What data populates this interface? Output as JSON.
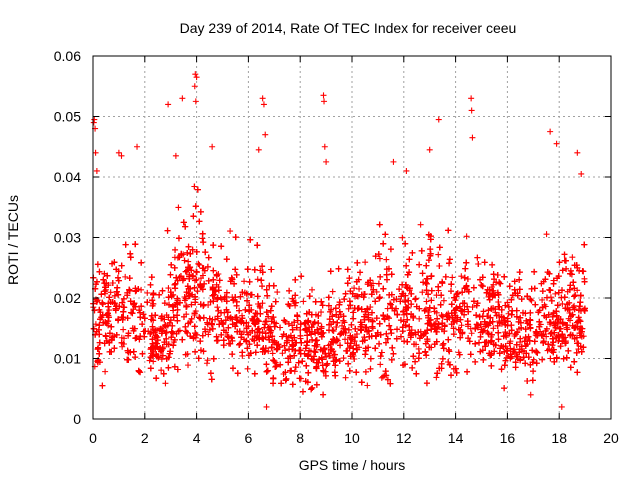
{
  "chart_data": {
    "type": "scatter",
    "title": "Day 239 of 2014, Rate Of TEC Index for receiver ceeu",
    "xlabel": "GPS time / hours",
    "ylabel": "ROTI / TECUs",
    "xlim": [
      0,
      20
    ],
    "ylim": [
      0,
      0.06
    ],
    "x_ticks": [
      "0",
      "2",
      "4",
      "6",
      "8",
      "10",
      "12",
      "14",
      "16",
      "18",
      "20"
    ],
    "y_ticks": [
      "0",
      "0.01",
      "0.02",
      "0.03",
      "0.04",
      "0.05",
      "0.06"
    ],
    "grid": true,
    "marker": "plus",
    "series": [
      {
        "name": "ROTI",
        "color": "#ff0000",
        "x_range": [
          0,
          19
        ],
        "density_per_hour": 320,
        "envelope_hours": [
          0,
          0.5,
          1,
          1.5,
          2,
          2.5,
          3,
          3.5,
          4,
          4.5,
          5,
          5.5,
          6,
          6.5,
          7,
          7.5,
          8,
          8.5,
          9,
          9.5,
          10,
          10.5,
          11,
          11.5,
          12,
          12.5,
          13,
          13.5,
          14,
          14.5,
          15,
          15.5,
          16,
          16.5,
          17,
          17.5,
          18,
          18.5,
          19
        ],
        "envelope_median": [
          0.016,
          0.016,
          0.017,
          0.016,
          0.014,
          0.013,
          0.017,
          0.02,
          0.021,
          0.018,
          0.017,
          0.017,
          0.016,
          0.017,
          0.013,
          0.013,
          0.013,
          0.012,
          0.013,
          0.014,
          0.015,
          0.016,
          0.017,
          0.019,
          0.018,
          0.017,
          0.018,
          0.017,
          0.018,
          0.019,
          0.017,
          0.016,
          0.014,
          0.015,
          0.014,
          0.016,
          0.017,
          0.016,
          0.017
        ],
        "envelope_spread": [
          0.007,
          0.007,
          0.008,
          0.007,
          0.006,
          0.006,
          0.008,
          0.009,
          0.01,
          0.008,
          0.007,
          0.007,
          0.007,
          0.008,
          0.006,
          0.006,
          0.006,
          0.006,
          0.006,
          0.007,
          0.007,
          0.007,
          0.008,
          0.009,
          0.008,
          0.008,
          0.008,
          0.008,
          0.009,
          0.009,
          0.008,
          0.007,
          0.007,
          0.007,
          0.007,
          0.008,
          0.008,
          0.007,
          0.008
        ],
        "outliers": [
          {
            "x": 0.03,
            "y": 0.049
          },
          {
            "x": 0.05,
            "y": 0.0495
          },
          {
            "x": 0.08,
            "y": 0.048
          },
          {
            "x": 0.1,
            "y": 0.044
          },
          {
            "x": 0.15,
            "y": 0.041
          },
          {
            "x": 1.0,
            "y": 0.044
          },
          {
            "x": 1.1,
            "y": 0.0435
          },
          {
            "x": 1.7,
            "y": 0.045
          },
          {
            "x": 2.9,
            "y": 0.052
          },
          {
            "x": 3.2,
            "y": 0.0435
          },
          {
            "x": 3.45,
            "y": 0.053
          },
          {
            "x": 3.95,
            "y": 0.057
          },
          {
            "x": 4.0,
            "y": 0.0565
          },
          {
            "x": 3.97,
            "y": 0.0525
          },
          {
            "x": 3.93,
            "y": 0.055
          },
          {
            "x": 4.6,
            "y": 0.045
          },
          {
            "x": 6.55,
            "y": 0.053
          },
          {
            "x": 6.6,
            "y": 0.052
          },
          {
            "x": 6.65,
            "y": 0.047
          },
          {
            "x": 6.4,
            "y": 0.0445
          },
          {
            "x": 8.9,
            "y": 0.0535
          },
          {
            "x": 8.92,
            "y": 0.0525
          },
          {
            "x": 8.95,
            "y": 0.045
          },
          {
            "x": 9.0,
            "y": 0.0425
          },
          {
            "x": 11.6,
            "y": 0.0425
          },
          {
            "x": 12.1,
            "y": 0.041
          },
          {
            "x": 13.35,
            "y": 0.0495
          },
          {
            "x": 13.0,
            "y": 0.0445
          },
          {
            "x": 14.6,
            "y": 0.053
          },
          {
            "x": 14.62,
            "y": 0.051
          },
          {
            "x": 14.65,
            "y": 0.0465
          },
          {
            "x": 17.65,
            "y": 0.0475
          },
          {
            "x": 17.9,
            "y": 0.0455
          },
          {
            "x": 18.7,
            "y": 0.044
          },
          {
            "x": 18.85,
            "y": 0.0405
          },
          {
            "x": 6.7,
            "y": 0.002
          },
          {
            "x": 18.1,
            "y": 0.002
          },
          {
            "x": 16.9,
            "y": 0.004
          },
          {
            "x": 11.2,
            "y": 0.007
          },
          {
            "x": 11.25,
            "y": 0.0072
          },
          {
            "x": 11.15,
            "y": 0.0068
          }
        ]
      }
    ]
  }
}
